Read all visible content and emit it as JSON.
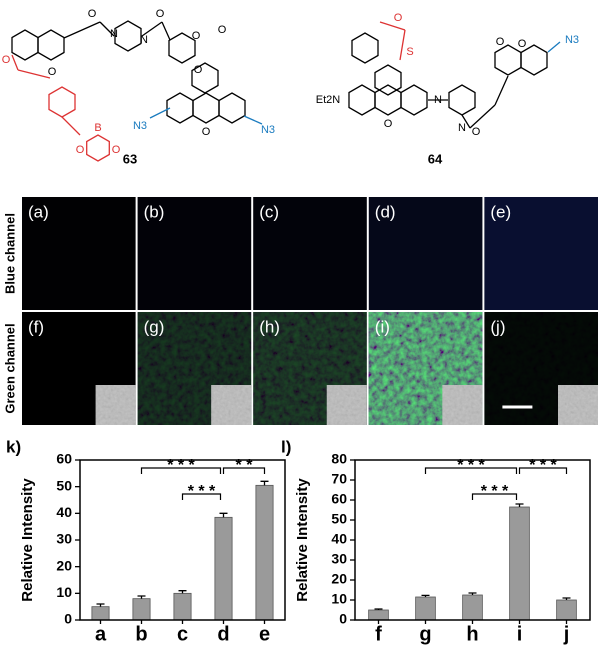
{
  "structures": [
    {
      "label": "63",
      "atoms": [
        "O",
        "O",
        "O",
        "O",
        "N",
        "N",
        "O",
        "O",
        "O",
        "O",
        "N3",
        "N3",
        "B",
        "O",
        "O"
      ]
    },
    {
      "label": "64",
      "atoms": [
        "O",
        "S",
        "Et2N",
        "O",
        "N",
        "N",
        "O",
        "O",
        "O",
        "N3"
      ]
    }
  ],
  "panels": {
    "rows": [
      "Blue channel",
      "Green channel"
    ],
    "labels": [
      "(a)",
      "(b)",
      "(c)",
      "(d)",
      "(e)",
      "(f)",
      "(g)",
      "(h)",
      "(i)",
      "(j)"
    ]
  },
  "chart_data": [
    {
      "type": "bar",
      "panel": "k)",
      "ylabel": "Relative Intensity",
      "categories": [
        "a",
        "b",
        "c",
        "d",
        "e"
      ],
      "values": [
        5,
        8,
        10,
        38.5,
        50.5
      ],
      "errors": [
        1,
        1,
        1,
        1.5,
        1.5
      ],
      "color": "#9a9a9a",
      "ylim": [
        0,
        60
      ],
      "yticks": [
        0,
        10,
        20,
        30,
        40,
        50,
        60
      ],
      "annotations": [
        {
          "text": "* * *",
          "between": [
            "b",
            "d"
          ]
        },
        {
          "text": "* * *",
          "between": [
            "c",
            "d"
          ]
        },
        {
          "text": "* *",
          "between": [
            "d",
            "e"
          ]
        }
      ]
    },
    {
      "type": "bar",
      "panel": "l)",
      "ylabel": "Relative Intensity",
      "categories": [
        "f",
        "g",
        "h",
        "i",
        "j"
      ],
      "values": [
        5,
        11.5,
        12.5,
        56.5,
        10
      ],
      "errors": [
        0.5,
        0.8,
        1,
        1.5,
        1
      ],
      "color": "#9a9a9a",
      "ylim": [
        0,
        80
      ],
      "yticks": [
        0,
        10,
        20,
        30,
        40,
        50,
        60,
        70,
        80
      ],
      "annotations": [
        {
          "text": "* * *",
          "between": [
            "g",
            "i"
          ]
        },
        {
          "text": "* * *",
          "between": [
            "h",
            "i"
          ]
        },
        {
          "text": "* * *",
          "between": [
            "i",
            "j"
          ]
        }
      ]
    }
  ]
}
